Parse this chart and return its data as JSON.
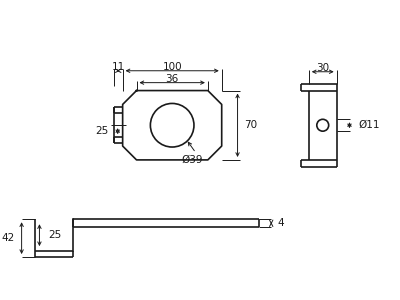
{
  "bg_color": "#ffffff",
  "line_color": "#1a1a1a",
  "dim_color": "#1a1a1a",
  "lw": 1.2,
  "dim_lw": 0.7,
  "font_size": 7.5,
  "annotations": {
    "dim_11": "11",
    "dim_100": "100",
    "dim_36": "36",
    "dim_25_left": "25",
    "dim_70": "70",
    "dim_39": "Ø39",
    "dim_30": "30",
    "dim_11r": "Ø11",
    "dim_42": "42",
    "dim_25_bot": "25",
    "dim_4": "4"
  }
}
